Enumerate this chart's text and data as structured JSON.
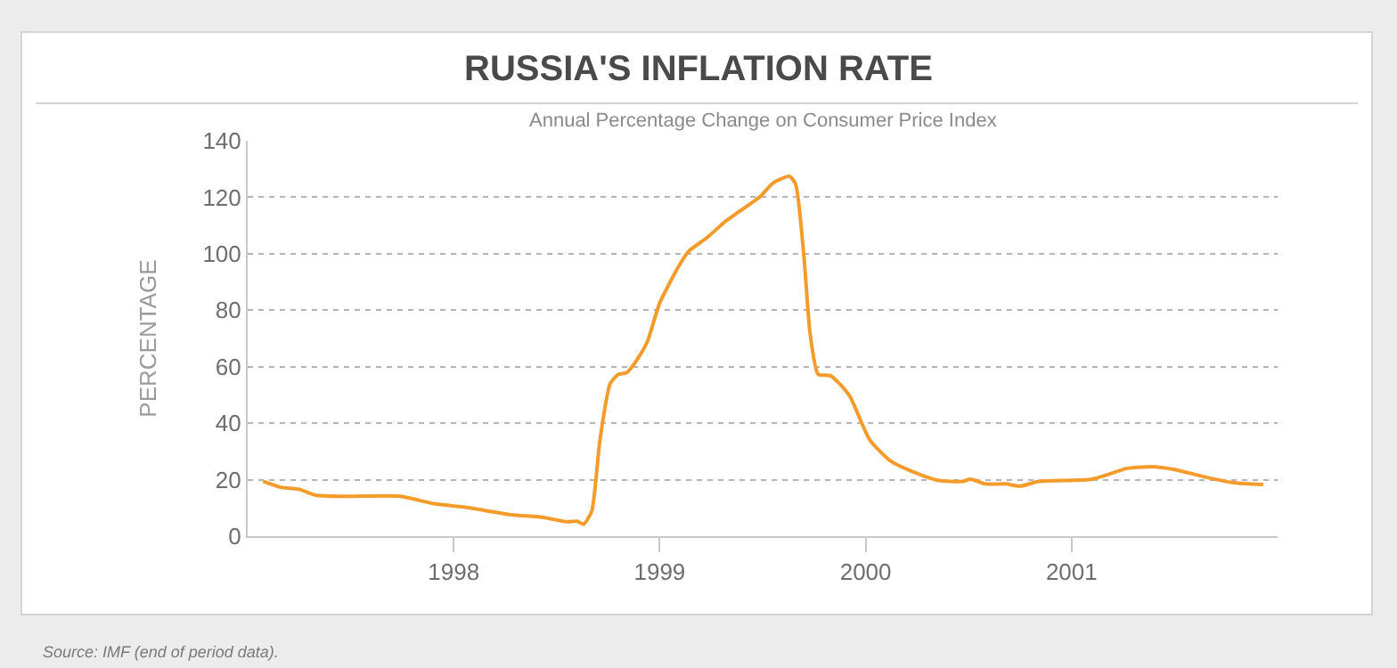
{
  "chart_data": {
    "type": "line",
    "title": "RUSSIA'S INFLATION RATE",
    "subtitle": "Annual Percentage Change on Consumer Price Index",
    "ylabel": "PERCENTAGE",
    "annotations": [
      "Source: IMF (end of period data)."
    ],
    "x": [
      1997.075,
      1997.16,
      1997.25,
      1997.33,
      1997.48,
      1997.74,
      1997.91,
      1998.05,
      1998.28,
      1998.43,
      1998.55,
      1998.6,
      1998.63,
      1998.67,
      1998.71,
      1998.76,
      1998.8,
      1998.84,
      1998.9,
      1998.94,
      1999.0,
      1999.09,
      1999.14,
      1999.23,
      1999.32,
      1999.37,
      1999.49,
      1999.55,
      1999.63,
      1999.66,
      1999.7,
      1999.73,
      1999.77,
      1999.83,
      1999.92,
      2000.02,
      2000.12,
      2000.24,
      2000.35,
      2000.47,
      2000.51,
      2000.58,
      2000.68,
      2000.75,
      2000.84,
      2001.1,
      2001.27,
      2001.39,
      2001.5,
      2001.64,
      2001.79,
      2001.93
    ],
    "series": [
      {
        "color": "#f39c2c",
        "values": [
          19.4,
          17.3,
          16.6,
          14.5,
          14.1,
          14.1,
          11.4,
          10.3,
          7.6,
          6.7,
          5.1,
          5.3,
          4.2,
          8.8,
          34,
          54,
          57.3,
          57.9,
          63.6,
          68.8,
          82.5,
          95.2,
          100.8,
          105.7,
          111.5,
          114.1,
          120.4,
          125,
          127.4,
          124.6,
          99.4,
          72,
          57.3,
          56.8,
          49.9,
          34.1,
          26.7,
          22.5,
          19.8,
          19.4,
          20.2,
          18.5,
          18.5,
          17.7,
          19.4,
          20.2,
          24,
          24.6,
          23.6,
          21.1,
          18.9,
          18.3
        ]
      }
    ],
    "xlim": [
      1997.0,
      2002.0
    ],
    "xticks": [
      1998,
      1999,
      2000,
      2001
    ],
    "ylim": [
      0,
      140
    ],
    "yticks": [
      0,
      20,
      40,
      60,
      80,
      100,
      120,
      140
    ],
    "grid": "y",
    "marker": "none",
    "line_style": "solid"
  }
}
